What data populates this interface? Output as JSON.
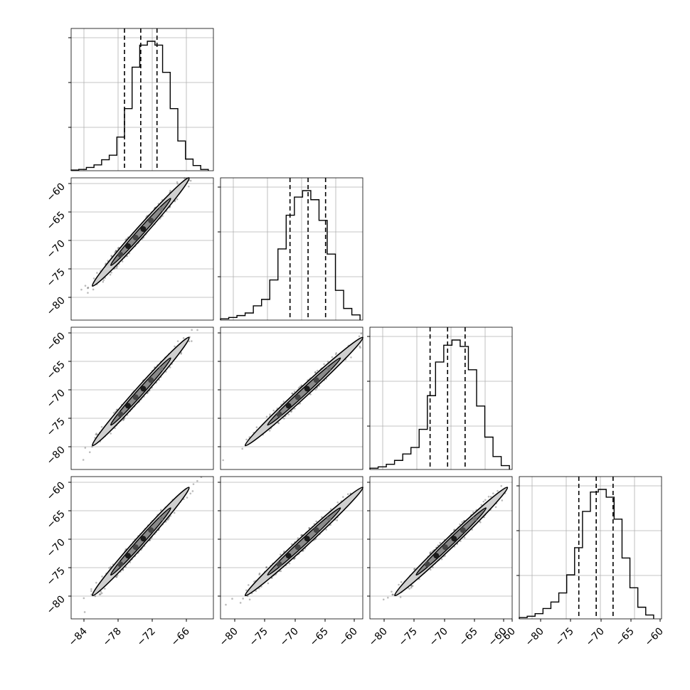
{
  "chart_data": {
    "type": "corner",
    "n_params": 4,
    "grid": true,
    "quantile_lines": "dashed",
    "diagonal": [
      {
        "param_index": 0,
        "bins": [
          -86,
          -84.5,
          -83,
          -81.5,
          -80,
          -78.5,
          -77,
          -75.5,
          -74,
          -72.5,
          -71,
          -69.5,
          -68,
          -66.5,
          -65,
          -63.5,
          -62,
          -60.5,
          -59
        ],
        "counts": [
          0.005,
          0.01,
          0.025,
          0.045,
          0.085,
          0.12,
          0.26,
          0.48,
          0.8,
          0.97,
          1.0,
          0.97,
          0.76,
          0.48,
          0.23,
          0.09,
          0.04,
          0.01
        ],
        "quantiles": [
          -75.5,
          -72.3,
          -69.1
        ],
        "xlim": [
          -86,
          -58
        ]
      },
      {
        "param_index": 1,
        "bins": [
          -84.5,
          -83,
          -81.5,
          -80,
          -78.5,
          -77,
          -75.5,
          -74,
          -72.5,
          -71,
          -69.5,
          -68,
          -66.5,
          -65,
          -63.5,
          -62,
          -60.5,
          -59
        ],
        "counts": [
          0.01,
          0.02,
          0.035,
          0.055,
          0.11,
          0.16,
          0.31,
          0.55,
          0.81,
          0.95,
          1.0,
          0.93,
          0.77,
          0.51,
          0.23,
          0.09,
          0.04
        ],
        "quantiles": [
          -71.8,
          -68.5,
          -65.3
        ],
        "xlim": [
          -84.5,
          -58.5
        ]
      },
      {
        "param_index": 2,
        "bins": [
          -84.5,
          -83,
          -81.5,
          -80,
          -78.5,
          -77,
          -75.5,
          -74,
          -72.5,
          -71,
          -69.5,
          -68,
          -66.5,
          -65,
          -63.5,
          -62,
          -60.5,
          -59
        ],
        "counts": [
          0.01,
          0.02,
          0.04,
          0.07,
          0.12,
          0.17,
          0.31,
          0.57,
          0.83,
          0.96,
          1.0,
          0.95,
          0.77,
          0.49,
          0.25,
          0.1,
          0.03
        ],
        "quantiles": [
          -73.5,
          -70.3,
          -67.1
        ],
        "xlim": [
          -84.5,
          -58.5
        ]
      },
      {
        "param_index": 3,
        "bins": [
          -85,
          -83.5,
          -82,
          -80.5,
          -79,
          -77.5,
          -76,
          -74.5,
          -73,
          -71.5,
          -70,
          -68.5,
          -67,
          -65.5,
          -64,
          -62.5,
          -61,
          -59.5
        ],
        "counts": [
          0.01,
          0.02,
          0.04,
          0.08,
          0.13,
          0.2,
          0.34,
          0.55,
          0.83,
          0.98,
          1.0,
          0.94,
          0.77,
          0.47,
          0.24,
          0.09,
          0.03
        ],
        "quantiles": [
          -73.7,
          -70.4,
          -67.2
        ],
        "xlim": [
          -85,
          -58
        ]
      }
    ],
    "offdiagonal": [
      {
        "row": 1,
        "col": 0,
        "slope": 1.0,
        "center": [
          -72.3,
          -68.5
        ],
        "range": [
          -84,
          -59
        ]
      },
      {
        "row": 2,
        "col": 0,
        "slope": 1.0,
        "center": [
          -72.3,
          -70.3
        ],
        "range": [
          -84,
          -59
        ]
      },
      {
        "row": 2,
        "col": 1,
        "slope": 1.0,
        "center": [
          -68.5,
          -70.3
        ],
        "range": [
          -82,
          -59
        ]
      },
      {
        "row": 3,
        "col": 0,
        "slope": 1.0,
        "center": [
          -72.3,
          -70.4
        ],
        "range": [
          -84,
          -59
        ]
      },
      {
        "row": 3,
        "col": 1,
        "slope": 1.0,
        "center": [
          -68.5,
          -70.4
        ],
        "range": [
          -82,
          -59
        ]
      },
      {
        "row": 3,
        "col": 2,
        "slope": 1.0,
        "center": [
          -70.3,
          -70.4
        ],
        "range": [
          -82,
          -59
        ]
      }
    ],
    "y_ticks_left": [
      "-60",
      "-65",
      "-70",
      "-75",
      "-80"
    ],
    "x_tick_labels": [
      [
        "-84",
        "-78",
        "-72",
        "-66"
      ],
      [
        "-80",
        "-75",
        "-70",
        "-65",
        "-60"
      ],
      [
        "-80",
        "-75",
        "-70",
        "-65",
        "-60"
      ],
      [
        "-60",
        "-80",
        "-75",
        "-70",
        "-65",
        "-60"
      ]
    ]
  },
  "colors": {
    "line": "#000000",
    "grid": "#b0b0b0",
    "axes": "#000000",
    "density": "#3c3c3c"
  }
}
